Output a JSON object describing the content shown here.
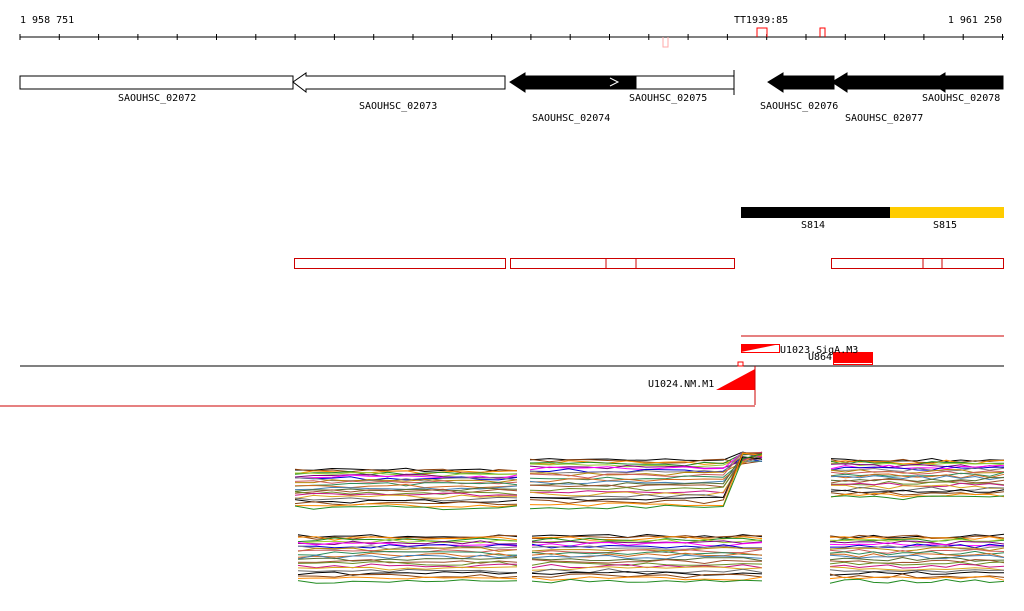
{
  "ruler": {
    "start_label": "1 958 751",
    "end_label": "1 961 250",
    "marker_label": "TT1939:85"
  },
  "genes": [
    {
      "name": "SAOUHSC_02072",
      "fill": "white",
      "strand": "reverse"
    },
    {
      "name": "SAOUHSC_02073",
      "fill": "white",
      "strand": "reverse"
    },
    {
      "name": "SAOUHSC_02074",
      "fill": "black",
      "strand": "reverse"
    },
    {
      "name": "SAOUHSC_02075",
      "fill": "white",
      "strand": "reverse"
    },
    {
      "name": "SAOUHSC_02076",
      "fill": "black",
      "strand": "reverse"
    },
    {
      "name": "SAOUHSC_02077",
      "fill": "black",
      "strand": "reverse"
    },
    {
      "name": "SAOUHSC_02078",
      "fill": "black",
      "strand": "reverse"
    }
  ],
  "segments": [
    {
      "name": "S814",
      "color": "#000000"
    },
    {
      "name": "S815",
      "color": "#ffcc00"
    }
  ],
  "features": [
    {
      "name": "U1023.SigA.M3",
      "color": "#ff0000"
    },
    {
      "name": "U864",
      "color": "#ff0000"
    },
    {
      "name": "U1024.NM.M1",
      "color": "#ff0000"
    }
  ],
  "colors": {
    "track_outline": "#cc0000",
    "feature": "#ff0000",
    "segment_black": "#000000",
    "segment_yellow": "#ffcc00"
  }
}
